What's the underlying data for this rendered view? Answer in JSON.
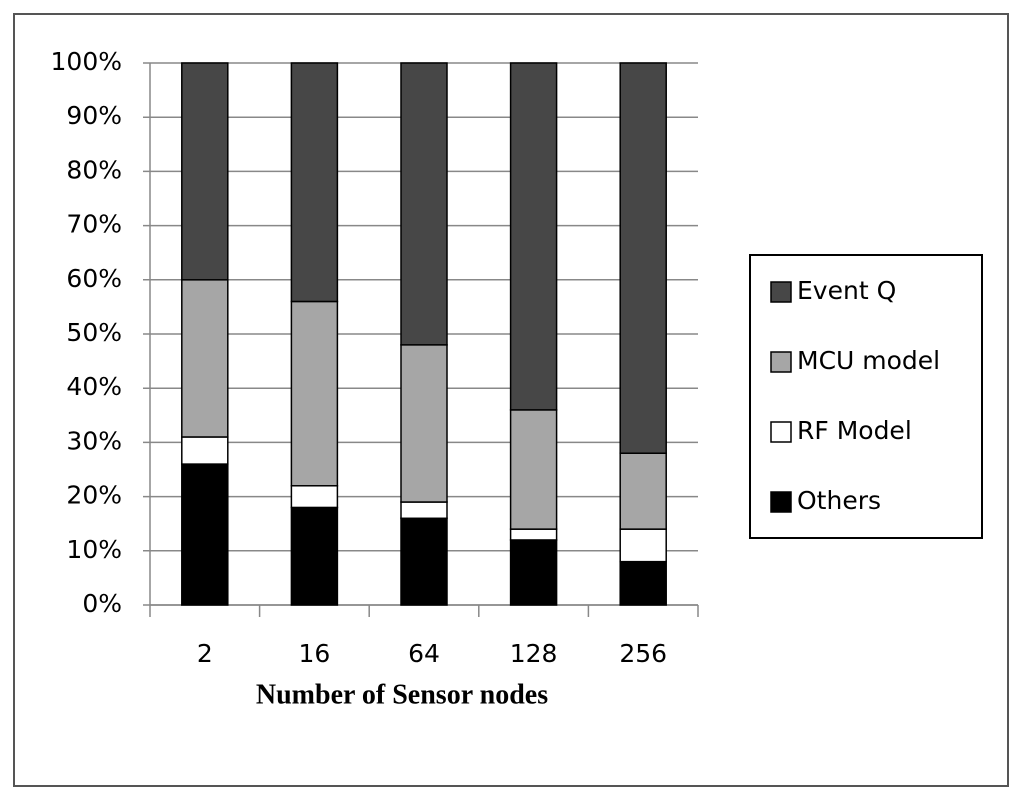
{
  "chart_data": {
    "type": "stacked_bar",
    "x_label": "Number of Sensor nodes",
    "categories": [
      "2",
      "16",
      "64",
      "128",
      "256"
    ],
    "series": [
      {
        "name": "Others",
        "color": "#000000",
        "values": [
          26,
          18,
          16,
          12,
          8
        ]
      },
      {
        "name": "RF Model",
        "color": "#ffffff",
        "values": [
          5,
          4,
          3,
          2,
          6
        ]
      },
      {
        "name": "MCU model",
        "color": "#a6a6a6",
        "values": [
          29,
          34,
          29,
          22,
          14
        ]
      },
      {
        "name": "Event Q",
        "color": "#474747",
        "values": [
          40,
          44,
          52,
          64,
          72
        ]
      }
    ],
    "ylim": [
      0,
      100
    ],
    "yticks": [
      {
        "value": 0,
        "label": "0%"
      },
      {
        "value": 10,
        "label": "10%"
      },
      {
        "value": 20,
        "label": "20%"
      },
      {
        "value": 30,
        "label": "30%"
      },
      {
        "value": 40,
        "label": "40%"
      },
      {
        "value": 50,
        "label": "50%"
      },
      {
        "value": 60,
        "label": "60%"
      },
      {
        "value": 70,
        "label": "70%"
      },
      {
        "value": 80,
        "label": "80%"
      },
      {
        "value": 90,
        "label": "90%"
      },
      {
        "value": 100,
        "label": "100%"
      }
    ],
    "grid": true,
    "legend": "right"
  }
}
